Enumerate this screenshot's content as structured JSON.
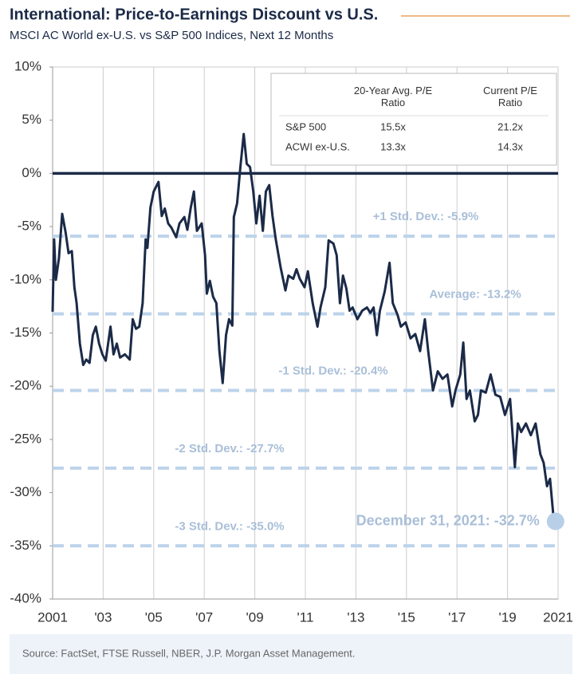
{
  "chart_data": {
    "type": "line",
    "title": "International: Price-to-Earnings Discount vs U.S.",
    "subtitle": "MSCI AC World ex-U.S. vs S&P 500 Indices, Next 12 Months",
    "xlim": [
      2001,
      2021
    ],
    "xticks": [
      2001,
      {
        "value": 2003,
        "label": "'03"
      },
      {
        "value": 2005,
        "label": "'05"
      },
      {
        "value": 2007,
        "label": "'07"
      },
      {
        "value": 2009,
        "label": "'09"
      },
      {
        "value": 2011,
        "label": "'11"
      },
      {
        "value": 2013,
        "label": "'13"
      },
      {
        "value": 2015,
        "label": "'15"
      },
      {
        "value": 2017,
        "label": "'17"
      },
      {
        "value": 2019,
        "label": "'19"
      },
      2021
    ],
    "ylim": [
      -40,
      10
    ],
    "yticks": [
      {
        "value": 10,
        "label": "10%"
      },
      {
        "value": 5,
        "label": "5%"
      },
      {
        "value": 0,
        "label": "0%"
      },
      {
        "value": -5,
        "label": "-5%"
      },
      {
        "value": -10,
        "label": "-10%"
      },
      {
        "value": -15,
        "label": "-15%"
      },
      {
        "value": -20,
        "label": "-20%"
      },
      {
        "value": -25,
        "label": "-25%"
      },
      {
        "value": -30,
        "label": "-30%"
      },
      {
        "value": -35,
        "label": "-35%"
      },
      {
        "value": -40,
        "label": "-40%"
      }
    ],
    "grid": true,
    "x": [
      2001.0,
      2001.06,
      2001.13,
      2001.25,
      2001.38,
      2001.51,
      2001.63,
      2001.76,
      2001.86,
      2001.95,
      2002.08,
      2002.21,
      2002.33,
      2002.46,
      2002.59,
      2002.71,
      2002.84,
      2002.97,
      2003.1,
      2003.29,
      2003.41,
      2003.54,
      2003.67,
      2003.86,
      2004.05,
      2004.17,
      2004.3,
      2004.43,
      2004.56,
      2004.68,
      2004.75,
      2004.87,
      2005.0,
      2005.19,
      2005.32,
      2005.44,
      2005.57,
      2005.7,
      2005.89,
      2006.02,
      2006.21,
      2006.33,
      2006.46,
      2006.59,
      2006.71,
      2006.9,
      2007.03,
      2007.1,
      2007.22,
      2007.35,
      2007.48,
      2007.6,
      2007.73,
      2007.86,
      2007.98,
      2008.11,
      2008.17,
      2008.3,
      2008.43,
      2008.56,
      2008.68,
      2008.81,
      2008.94,
      2009.06,
      2009.19,
      2009.32,
      2009.44,
      2009.57,
      2009.7,
      2009.83,
      2010.02,
      2010.21,
      2010.33,
      2010.52,
      2010.65,
      2010.78,
      2010.97,
      2011.1,
      2011.29,
      2011.48,
      2011.6,
      2011.79,
      2011.92,
      2012.11,
      2012.24,
      2012.37,
      2012.49,
      2012.62,
      2012.75,
      2012.87,
      2013.06,
      2013.25,
      2013.44,
      2013.57,
      2013.7,
      2013.83,
      2013.95,
      2014.14,
      2014.33,
      2014.46,
      2014.65,
      2014.78,
      2014.97,
      2015.16,
      2015.35,
      2015.54,
      2015.73,
      2015.86,
      2016.05,
      2016.24,
      2016.43,
      2016.62,
      2016.81,
      2016.94,
      2017.13,
      2017.25,
      2017.38,
      2017.51,
      2017.7,
      2017.83,
      2017.95,
      2018.14,
      2018.33,
      2018.52,
      2018.71,
      2018.9,
      2019.1,
      2019.29,
      2019.41,
      2019.54,
      2019.73,
      2019.92,
      2020.11,
      2020.3,
      2020.43,
      2020.56,
      2020.68,
      2020.81,
      2020.9
    ],
    "series": [
      {
        "name": "P/E discount",
        "color": "#1b2a47",
        "values": [
          -13,
          -6.2,
          -10,
          -8,
          -3.8,
          -5.5,
          -7.5,
          -7.3,
          -10.7,
          -12.2,
          -16,
          -18,
          -17.5,
          -17.8,
          -15.2,
          -14.4,
          -16,
          -17,
          -17.6,
          -14.4,
          -17,
          -16,
          -17.3,
          -17,
          -17.5,
          -13.7,
          -14.6,
          -14.4,
          -12.2,
          -6.2,
          -7,
          -3.2,
          -1.7,
          -0.8,
          -4,
          -3.3,
          -4.7,
          -5.1,
          -6,
          -4.7,
          -4.1,
          -5.3,
          -3.3,
          -1.7,
          -5.4,
          -4.7,
          -7.7,
          -11.3,
          -10.1,
          -11.6,
          -12.2,
          -16.7,
          -19.7,
          -15.2,
          -13.7,
          -14.3,
          -4.1,
          -2.8,
          0.6,
          3.7,
          0.9,
          0.6,
          -1.7,
          -4.7,
          -2.1,
          -5.4,
          -1.7,
          -1.1,
          -4,
          -6.2,
          -8.8,
          -11,
          -9.6,
          -9.9,
          -9,
          -9.9,
          -10.7,
          -9.2,
          -12.2,
          -14.4,
          -12.6,
          -10.7,
          -6.3,
          -6.6,
          -7.7,
          -12.2,
          -9.6,
          -10.8,
          -12.9,
          -12.6,
          -13.7,
          -12.9,
          -12.6,
          -13.1,
          -12.6,
          -15.2,
          -12.9,
          -11.1,
          -8.4,
          -12.2,
          -13.3,
          -14.4,
          -14,
          -15.5,
          -15.1,
          -16.7,
          -13.7,
          -16.7,
          -20.4,
          -18.6,
          -19.3,
          -18.9,
          -21.9,
          -20.4,
          -18.9,
          -15.9,
          -21.2,
          -20.4,
          -23.3,
          -22.7,
          -20.4,
          -20.6,
          -18.9,
          -20.8,
          -21,
          -22.7,
          -21.2,
          -27.6,
          -23.5,
          -24.3,
          -23.5,
          -24.6,
          -23.5,
          -26.4,
          -27.2,
          -29.4,
          -28.7,
          -32.1,
          -32.7
        ]
      }
    ],
    "reference_lines": [
      {
        "label": "+1 Std. Dev.: -5.9%",
        "value": -5.9
      },
      {
        "label": "Average: -13.2%",
        "value": -13.2
      },
      {
        "label": "-1 Std. Dev.: -20.4%",
        "value": -20.4
      },
      {
        "label": "-2 Std. Dev.: -27.7%",
        "value": -27.7
      },
      {
        "label": "-3 Std. Dev.: -35.0%",
        "value": -35.0
      }
    ],
    "reference_color": "#bcd3ea",
    "annotation": "December 31, 2021: -32.7%",
    "table": {
      "header": [
        "",
        "20-Year Avg. P/E Ratio",
        "Current P/E Ratio"
      ],
      "rows": [
        [
          "S&P 500",
          "15.5x",
          "21.2x"
        ],
        [
          "ACWI ex-U.S.",
          "13.3x",
          "14.3x"
        ]
      ]
    },
    "source": "Source: FactSet, FTSE Russell, NBER, J.P. Morgan Asset Management."
  }
}
